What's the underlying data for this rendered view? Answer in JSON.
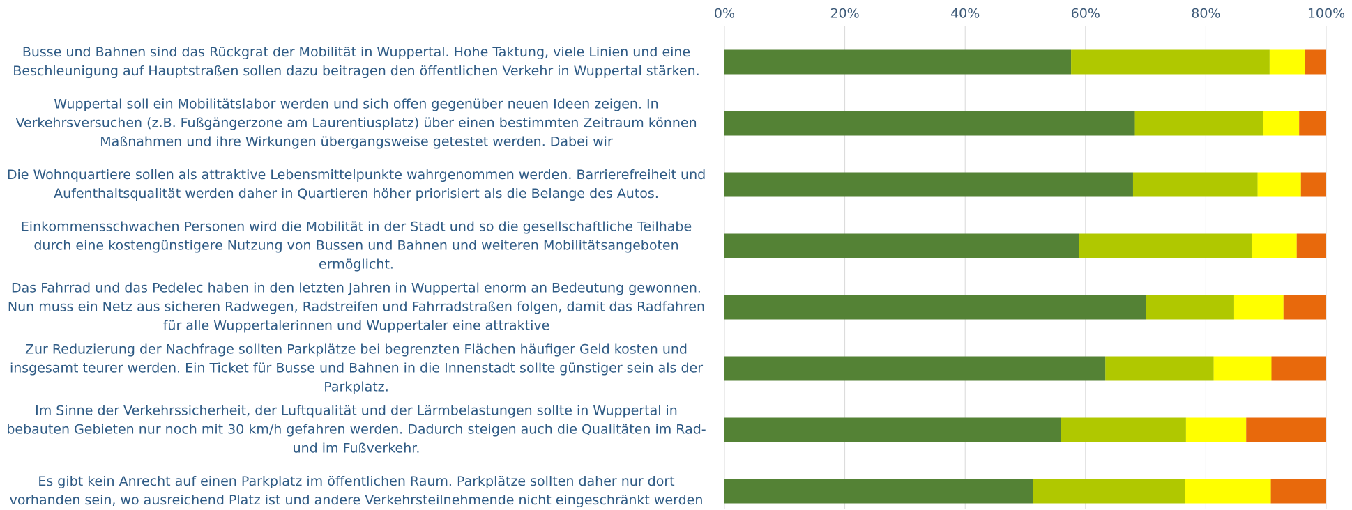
{
  "chart_data": {
    "type": "stacked_bar_horizontal",
    "categories": [
      "Busse und Bahnen sind das Rückgrat der Mobilität in Wuppertal. Hohe Taktung, viele Linien und eine\nBeschleunigung auf Hauptstraßen sollen dazu beitragen den öffentlichen Verkehr in Wuppertal stärken.",
      "Wuppertal soll ein Mobilitätslabor werden und sich offen gegenüber neuen Ideen zeigen. In\nVerkehrsversuchen (z.B. Fußgängerzone am Laurentiusplatz) über einen bestimmten Zeitraum können\nMaßnahmen und ihre Wirkungen übergangsweise getestet werden. Dabei wir",
      "Die Wohnquartiere sollen als attraktive Lebensmittelpunkte wahrgenommen werden. Barrierefreiheit und\nAufenthaltsqualität werden daher in Quartieren höher priorisiert als die Belange des Autos.",
      "Einkommensschwachen Personen wird die Mobilität in der Stadt und so die gesellschaftliche Teilhabe\ndurch eine kostengünstigere Nutzung von Bussen und Bahnen und weiteren Mobilitätsangeboten\nermöglicht.",
      "Das Fahrrad und das Pedelec haben in den letzten Jahren in Wuppertal enorm an Bedeutung gewonnen.\nNun muss ein Netz aus sicheren Radwegen, Radstreifen und Fahrradstraßen folgen, damit das Radfahren\nfür alle Wuppertalerinnen und Wuppertaler eine attraktive",
      "Zur Reduzierung der Nachfrage sollten Parkplätze bei begrenzten Flächen häufiger Geld kosten und\ninsgesamt teurer werden. Ein Ticket für Busse und Bahnen in die Innenstadt sollte günstiger sein als der\nParkplatz.",
      "Im Sinne der Verkehrssicherheit, der Luftqualität und der Lärmbelastungen sollte in Wuppertal in\nbebauten Gebieten nur noch mit 30 km/h gefahren werden. Dadurch steigen auch die Qualitäten im Rad-\nund im Fußverkehr.",
      "Es gibt kein Anrecht auf einen Parkplatz im öffentlichen Raum. Parkplätze sollten daher nur dort\nvorhanden sein, wo ausreichend Platz ist und andere Verkehrsteilnehmende nicht eingeschränkt werden"
    ],
    "series": [
      {
        "color": "#548235",
        "values": [
          57.6,
          68.2,
          67.9,
          58.9,
          70.0,
          63.3,
          55.9,
          51.3
        ]
      },
      {
        "color": "#b0c800",
        "values": [
          33.0,
          21.3,
          20.7,
          28.7,
          14.7,
          18.0,
          20.8,
          25.2
        ]
      },
      {
        "color": "#ffff00",
        "values": [
          5.9,
          6.0,
          7.2,
          7.5,
          8.2,
          9.6,
          10.0,
          14.3
        ]
      },
      {
        "color": "#e8690c",
        "values": [
          3.5,
          4.5,
          4.2,
          4.9,
          7.1,
          9.1,
          13.3,
          9.2
        ]
      }
    ],
    "xlim": [
      0,
      100
    ],
    "xticks": [
      {
        "value": 0,
        "label": "0%"
      },
      {
        "value": 20,
        "label": "20%"
      },
      {
        "value": 40,
        "label": "40%"
      },
      {
        "value": 60,
        "label": "60%"
      },
      {
        "value": 80,
        "label": "80%"
      },
      {
        "value": 100,
        "label": "100%"
      }
    ],
    "grid": true
  }
}
